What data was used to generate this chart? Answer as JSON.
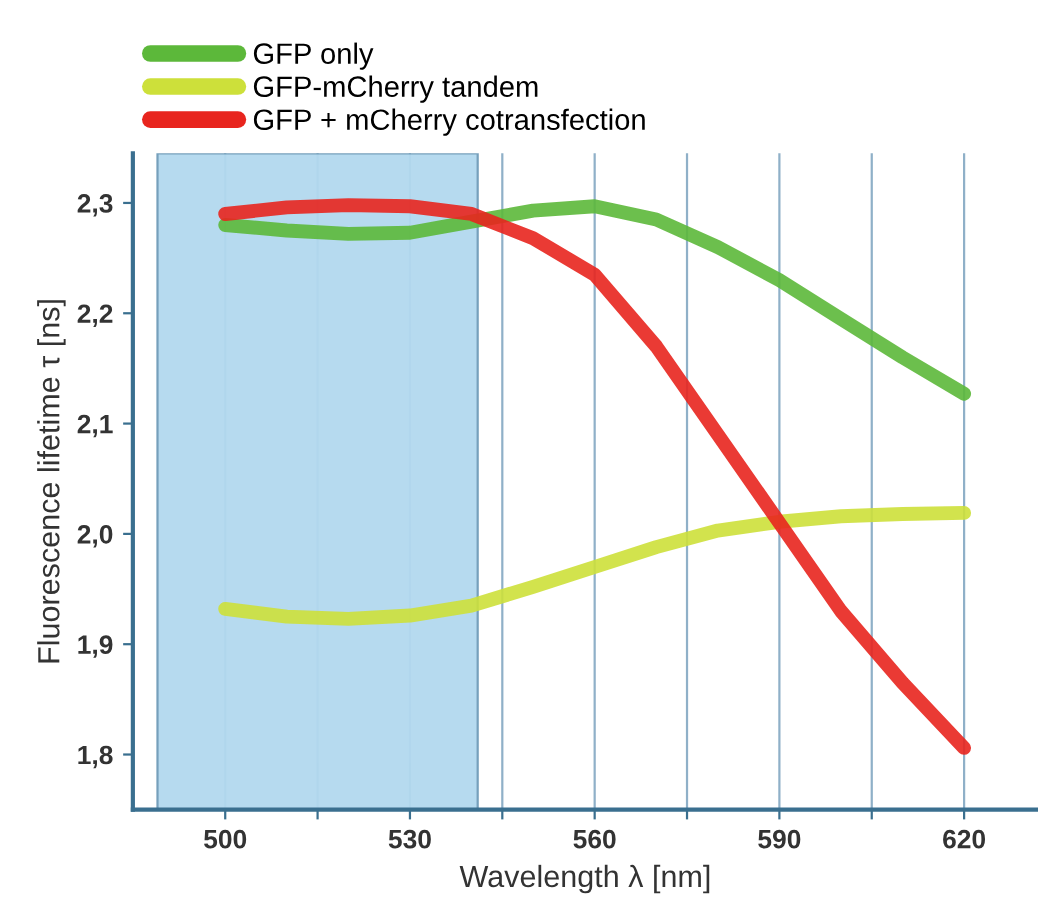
{
  "chart_data": {
    "type": "line",
    "xlabel": "Wavelength λ [nm]",
    "ylabel": "Fluorescence lifetime τ [ns]",
    "x": [
      500,
      510,
      520,
      530,
      540,
      550,
      560,
      570,
      580,
      590,
      600,
      610,
      620
    ],
    "series": [
      {
        "name": "GFP only",
        "color": "#5cb83a",
        "values": [
          2.28,
          2.275,
          2.272,
          2.273,
          2.283,
          2.293,
          2.297,
          2.285,
          2.26,
          2.23,
          2.195,
          2.16,
          2.127
        ]
      },
      {
        "name": "GFP-mCherry tandem",
        "color": "#cde03a",
        "values": [
          1.932,
          1.925,
          1.923,
          1.926,
          1.935,
          1.952,
          1.97,
          1.988,
          2.003,
          2.011,
          2.016,
          2.018,
          2.019
        ]
      },
      {
        "name": "GFP + mCherry cotransfection",
        "color": "#e8251e",
        "values": [
          2.29,
          2.296,
          2.298,
          2.297,
          2.29,
          2.268,
          2.235,
          2.17,
          2.09,
          2.01,
          1.93,
          1.865,
          1.806
        ]
      }
    ],
    "xlim": [
      485,
      632
    ],
    "ylim": [
      1.75,
      2.345
    ],
    "xticks": [
      500,
      {
        "value": 515,
        "label": null
      },
      530,
      {
        "value": 545,
        "label": null
      },
      560,
      {
        "value": 575,
        "label": null
      },
      590,
      {
        "value": 605,
        "label": null
      },
      620
    ],
    "yticks": [
      {
        "value": 1.8,
        "label": "1,8"
      },
      {
        "value": 1.9,
        "label": "1,9"
      },
      {
        "value": 2.0,
        "label": "2,0"
      },
      {
        "value": 2.1,
        "label": "2,1"
      },
      {
        "value": 2.2,
        "label": "2,2"
      },
      {
        "value": 2.3,
        "label": "2,3"
      }
    ],
    "bands": [
      {
        "axis": "x",
        "from": 489,
        "to": 541,
        "color": "#b3d9ef"
      }
    ],
    "grid": "x",
    "legend": "top left",
    "marker": "none",
    "line_style": "solid"
  }
}
